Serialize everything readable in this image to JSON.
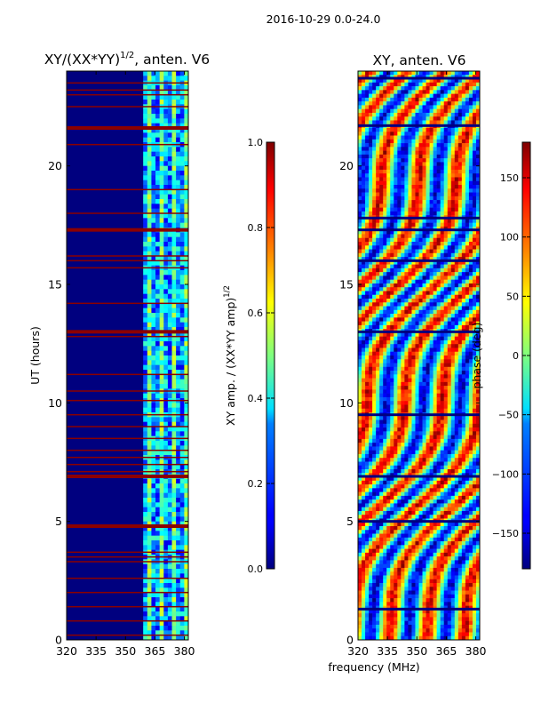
{
  "suptitle": "2016-10-29 0.0-24.0",
  "chart_data": [
    {
      "type": "heatmap",
      "title_main": "XY/(XX*YY)",
      "title_sup": "1/2",
      "title_rest": ", anten. V6",
      "xlabel": "",
      "ylabel": "UT (hours)",
      "xlim": [
        320,
        382
      ],
      "ylim": [
        0,
        24
      ],
      "xticks": [
        320,
        335,
        350,
        365,
        380
      ],
      "yticks": [
        0,
        5,
        10,
        15,
        20
      ],
      "noise_edge_mhz": 359,
      "saturated_hours": [
        0.2,
        0.8,
        1.4,
        2.0,
        2.6,
        3.3,
        3.5,
        3.7,
        4.8,
        6.9,
        7.1,
        7.4,
        7.7,
        8.0,
        8.5,
        9.0,
        9.5,
        10.1,
        10.5,
        11.2,
        12.8,
        13.0,
        14.2,
        15.7,
        16.0,
        16.2,
        17.3,
        18.0,
        19.0,
        20.9,
        21.6,
        22.5,
        23.0,
        23.2,
        23.5
      ],
      "colorbar": {
        "label_main": "XY amp. / (XX*YY amp)",
        "label_sup": "1/2",
        "range": [
          0.0,
          1.0
        ],
        "ticks": [
          "0.0",
          "0.2",
          "0.4",
          "0.6",
          "0.8",
          "1.0"
        ],
        "tick_values": [
          0.0,
          0.2,
          0.4,
          0.6,
          0.8,
          1.0
        ]
      }
    },
    {
      "type": "heatmap",
      "title": "XY, anten. V6",
      "xlabel": "frequency (MHz)",
      "ylabel": "",
      "xlim": [
        320,
        382
      ],
      "ylim": [
        0,
        24
      ],
      "xticks": [
        320,
        335,
        350,
        365,
        380
      ],
      "yticks": [
        0,
        5,
        10,
        15,
        20
      ],
      "colorbar": {
        "label": "phase (deg)",
        "range": [
          -180,
          180
        ],
        "ticks": [
          "−150",
          "−100",
          "−50",
          "0",
          "50",
          "100",
          "150"
        ],
        "tick_values": [
          -150,
          -100,
          -50,
          0,
          50,
          100,
          150
        ]
      }
    }
  ]
}
